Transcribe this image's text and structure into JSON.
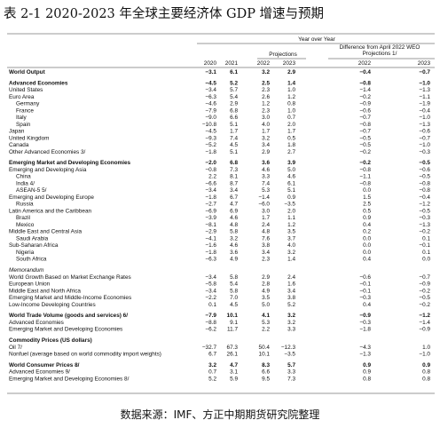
{
  "header": {
    "title": "表 2-1 2020-2023 年全球主要经济体 GDP 增速与预期"
  },
  "table": {
    "top_heading": "Year over Year",
    "projections_heading": "Projections",
    "difference_heading": [
      "Difference from April 2022 WEO",
      "Projections 1/"
    ],
    "years": [
      "2020",
      "2021",
      "2022",
      "2023",
      "2022",
      "2023"
    ],
    "groups": [
      {
        "rows": [
          {
            "label": "World Output",
            "bold": true,
            "values": [
              "−3.1",
              "6.1",
              "3.2",
              "2.9",
              "−0.4",
              "−0.7"
            ]
          }
        ]
      },
      {
        "rows": [
          {
            "label": "Advanced Economies",
            "bold": true,
            "values": [
              "−4.5",
              "5.2",
              "2.5",
              "1.4",
              "−0.8",
              "−1.0"
            ]
          },
          {
            "label": "United States",
            "values": [
              "−3.4",
              "5.7",
              "2.3",
              "1.0",
              "−1.4",
              "−1.3"
            ]
          },
          {
            "label": "Euro Area",
            "values": [
              "−6.3",
              "5.4",
              "2.6",
              "1.2",
              "−0.2",
              "−1.1"
            ]
          },
          {
            "label": "Germany",
            "indent": 1,
            "values": [
              "−4.6",
              "2.9",
              "1.2",
              "0.8",
              "−0.9",
              "−1.9"
            ]
          },
          {
            "label": "France",
            "indent": 1,
            "values": [
              "−7.9",
              "6.8",
              "2.3",
              "1.0",
              "−0.6",
              "−0.4"
            ]
          },
          {
            "label": "Italy",
            "indent": 1,
            "values": [
              "−9.0",
              "6.6",
              "3.0",
              "0.7",
              "−0.7",
              "−1.0"
            ]
          },
          {
            "label": "Spain",
            "indent": 1,
            "values": [
              "−10.8",
              "5.1",
              "4.0",
              "2.0",
              "−0.8",
              "−1.3"
            ]
          },
          {
            "label": "Japan",
            "values": [
              "−4.5",
              "1.7",
              "1.7",
              "1.7",
              "−0.7",
              "−0.6"
            ]
          },
          {
            "label": "United Kingdom",
            "values": [
              "−9.3",
              "7.4",
              "3.2",
              "0.5",
              "−0.5",
              "−0.7"
            ]
          },
          {
            "label": "Canada",
            "values": [
              "−5.2",
              "4.5",
              "3.4",
              "1.8",
              "−0.5",
              "−1.0"
            ]
          },
          {
            "label": "Other Advanced Economies 3/",
            "values": [
              "−1.8",
              "5.1",
              "2.9",
              "2.7",
              "−0.2",
              "−0.3"
            ]
          }
        ]
      },
      {
        "rows": [
          {
            "label": "Emerging Market and Developing Economies",
            "bold": true,
            "values": [
              "−2.0",
              "6.8",
              "3.6",
              "3.9",
              "−0.2",
              "−0.5"
            ]
          },
          {
            "label": "Emerging and Developing Asia",
            "values": [
              "−0.8",
              "7.3",
              "4.6",
              "5.0",
              "−0.8",
              "−0.6"
            ]
          },
          {
            "label": "China",
            "indent": 1,
            "values": [
              "2.2",
              "8.1",
              "3.3",
              "4.6",
              "−1.1",
              "−0.5"
            ]
          },
          {
            "label": "India 4/",
            "indent": 1,
            "values": [
              "−6.6",
              "8.7",
              "7.4",
              "6.1",
              "−0.8",
              "−0.8"
            ]
          },
          {
            "label": "ASEAN-5 5/",
            "indent": 1,
            "values": [
              "−3.4",
              "3.4",
              "5.3",
              "5.1",
              "0.0",
              "−0.8"
            ]
          },
          {
            "label": "Emerging and Developing Europe",
            "values": [
              "−1.8",
              "6.7",
              "−1.4",
              "0.9",
              "1.5",
              "−0.4"
            ]
          },
          {
            "label": "Russia",
            "indent": 1,
            "values": [
              "−2.7",
              "4.7",
              "−6.0",
              "−3.5",
              "2.5",
              "−1.2"
            ]
          },
          {
            "label": "Latin America and the Caribbean",
            "values": [
              "−6.9",
              "6.9",
              "3.0",
              "2.0",
              "0.5",
              "−0.5"
            ]
          },
          {
            "label": "Brazil",
            "indent": 1,
            "values": [
              "−3.9",
              "4.6",
              "1.7",
              "1.1",
              "0.9",
              "−0.3"
            ]
          },
          {
            "label": "Mexico",
            "indent": 1,
            "values": [
              "−8.1",
              "4.8",
              "2.4",
              "1.2",
              "0.4",
              "−1.3"
            ]
          },
          {
            "label": "Middle East and Central Asia",
            "values": [
              "−2.9",
              "5.8",
              "4.8",
              "3.5",
              "0.2",
              "−0.2"
            ]
          },
          {
            "label": "Saudi Arabia",
            "indent": 1,
            "values": [
              "−4.1",
              "3.2",
              "7.6",
              "3.7",
              "0.0",
              "0.1"
            ]
          },
          {
            "label": "Sub-Saharan Africa",
            "values": [
              "−1.6",
              "4.6",
              "3.8",
              "4.0",
              "0.0",
              "−0.1"
            ]
          },
          {
            "label": "Nigeria",
            "indent": 1,
            "values": [
              "−1.8",
              "3.6",
              "3.4",
              "3.2",
              "0.0",
              "0.1"
            ]
          },
          {
            "label": "South Africa",
            "indent": 1,
            "values": [
              "−6.3",
              "4.9",
              "2.3",
              "1.4",
              "0.4",
              "0.0"
            ]
          }
        ]
      },
      {
        "rows": [
          {
            "label": "Memorandum",
            "italic": true
          },
          {
            "label": "World Growth Based on Market Exchange Rates",
            "values": [
              "−3.4",
              "5.8",
              "2.9",
              "2.4",
              "−0.6",
              "−0.7"
            ]
          },
          {
            "label": "European Union",
            "values": [
              "−5.8",
              "5.4",
              "2.8",
              "1.6",
              "−0.1",
              "−0.9"
            ]
          },
          {
            "label": "Middle East and North Africa",
            "values": [
              "−3.4",
              "5.8",
              "4.9",
              "3.4",
              "−0.1",
              "−0.2"
            ]
          },
          {
            "label": "Emerging Market and Middle-Income Economies",
            "values": [
              "−2.2",
              "7.0",
              "3.5",
              "3.8",
              "−0.3",
              "−0.5"
            ]
          },
          {
            "label": "Low-Income Developing Countries",
            "values": [
              "0.1",
              "4.5",
              "5.0",
              "5.2",
              "0.4",
              "−0.2"
            ]
          }
        ]
      },
      {
        "rows": [
          {
            "label": "World Trade Volume (goods and services) 6/",
            "bold": true,
            "values": [
              "−7.9",
              "10.1",
              "4.1",
              "3.2",
              "−0.9",
              "−1.2"
            ]
          },
          {
            "label": "Advanced Economies",
            "values": [
              "−8.8",
              "9.1",
              "5.3",
              "3.2",
              "−0.3",
              "−1.4"
            ]
          },
          {
            "label": "Emerging Market and Developing Economies",
            "values": [
              "−6.2",
              "11.7",
              "2.2",
              "3.3",
              "−1.8",
              "−0.9"
            ]
          }
        ]
      },
      {
        "rows": [
          {
            "label": "Commodity Prices (US dollars)",
            "bold": true
          },
          {
            "label": "Oil 7/",
            "values": [
              "−32.7",
              "67.3",
              "50.4",
              "−12.3",
              "−4.3",
              "1.0"
            ]
          },
          {
            "label": "Nonfuel (average based on world commodity import weights)",
            "values": [
              "6.7",
              "26.1",
              "10.1",
              "−3.5",
              "−1.3",
              "−1.0"
            ]
          }
        ]
      },
      {
        "rows": [
          {
            "label": "World Consumer Prices 8/",
            "bold": true,
            "values": [
              "3.2",
              "4.7",
              "8.3",
              "5.7",
              "0.9",
              "0.9"
            ]
          },
          {
            "label": "Advanced Economies 9/",
            "values": [
              "0.7",
              "3.1",
              "6.6",
              "3.3",
              "0.9",
              "0.8"
            ]
          },
          {
            "label": "Emerging Market and Developing Economies 8/",
            "values": [
              "5.2",
              "5.9",
              "9.5",
              "7.3",
              "0.8",
              "0.8"
            ]
          }
        ]
      }
    ]
  },
  "footer": {
    "source": "数据来源：IMF、方正中期期货研究院整理"
  }
}
